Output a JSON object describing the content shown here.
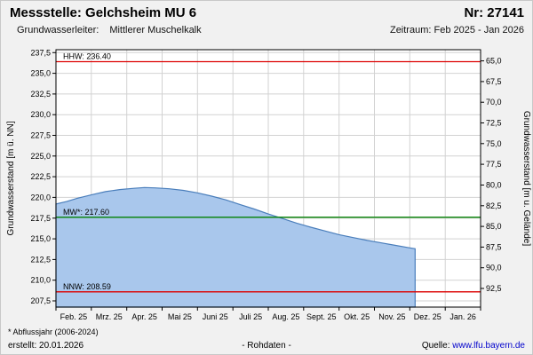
{
  "header": {
    "station": "Messstelle: Gelchsheim MU 6",
    "number": "Nr: 27141",
    "aquifer_label": "Grundwasserleiter:",
    "aquifer_value": "Mittlerer Muschelkalk",
    "period": "Zeitraum: Feb 2025 - Jan 2026"
  },
  "footer": {
    "note": "* Abflussjahr (2006-2024)",
    "created": "erstellt: 20.01.2026",
    "data_type": "- Rohdaten -",
    "source_label": "Quelle:",
    "source_url": "www.lfu.bayern.de"
  },
  "chart_data": {
    "type": "area",
    "title": "Grundwasserstand Messstelle Gelchsheim MU 6",
    "ylabel_left": "Grundwasserstand [m ü. NN]",
    "ylabel_right": "Grundwasserstand [m u. Gelände]",
    "ylim_left": [
      206.75,
      237.85
    ],
    "ground_level_offset": 301.5,
    "grid": true,
    "y_left_ticks": {
      "values": [
        237.5,
        235.0,
        232.5,
        230.0,
        227.5,
        225.0,
        222.5,
        220.0,
        217.5,
        215.0,
        212.5,
        210.0,
        207.5
      ],
      "labels": [
        "237,5",
        "235,0",
        "232,5",
        "230,0",
        "227,5",
        "225,0",
        "222,5",
        "220,0",
        "217,5",
        "215,0",
        "212,5",
        "210,0",
        "207,5"
      ]
    },
    "y_right_ticks": {
      "values": [
        65.0,
        67.5,
        70.0,
        72.5,
        75.0,
        77.5,
        80.0,
        82.5,
        85.0,
        87.5,
        90.0,
        92.5
      ],
      "labels": [
        "65,0",
        "67,5",
        "70,0",
        "72,5",
        "75,0",
        "77,5",
        "80,0",
        "82,5",
        "85,0",
        "87,5",
        "90,0",
        "92,5"
      ]
    },
    "x_tick_labels": [
      "Feb. 25",
      "Mrz. 25",
      "Apr. 25",
      "Mai 25",
      "Juni 25",
      "Juli 25",
      "Aug. 25",
      "Sept. 25",
      "Okt. 25",
      "Nov. 25",
      "Dez. 25",
      "Jan. 26"
    ],
    "reference_lines": [
      {
        "name": "HHW",
        "label": "HHW: 236.40",
        "value": 236.4,
        "color": "#dd0000"
      },
      {
        "name": "MW",
        "label": "MW*: 217.60",
        "value": 217.6,
        "color": "#008000"
      },
      {
        "name": "NNW",
        "label": "NNW: 208.59",
        "value": 208.59,
        "color": "#dd0000"
      }
    ],
    "series": [
      {
        "name": "Grundwasserstand Rohdaten",
        "x_months": [
          0,
          0.3,
          0.6,
          1.0,
          1.4,
          1.8,
          2.2,
          2.5,
          2.8,
          3.2,
          3.6,
          4.0,
          4.4,
          4.8,
          5.2,
          5.6,
          6.0,
          6.4,
          6.8,
          7.2,
          7.6,
          8.0,
          8.4,
          8.8,
          9.2,
          9.6,
          10.0,
          10.15
        ],
        "values": [
          219.2,
          219.5,
          219.9,
          220.3,
          220.7,
          220.95,
          221.1,
          221.2,
          221.15,
          221.05,
          220.85,
          220.55,
          220.15,
          219.7,
          219.15,
          218.6,
          218.0,
          217.45,
          216.9,
          216.4,
          215.95,
          215.5,
          215.15,
          214.8,
          214.5,
          214.2,
          213.9,
          213.8
        ],
        "fill_color": "#a9c7ec",
        "stroke_color": "#4a7ebb"
      }
    ],
    "grid_color": "#d2d2d2",
    "plot_background": "#ffffff"
  }
}
